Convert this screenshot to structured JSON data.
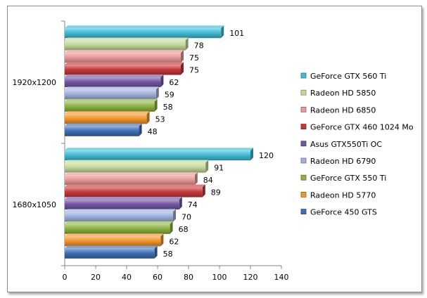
{
  "chart_data": {
    "type": "bar",
    "orientation": "horizontal",
    "title": "",
    "xlabel": "",
    "ylabel": "",
    "xlim": [
      0,
      140
    ],
    "ticks": [
      0,
      20,
      40,
      60,
      80,
      100,
      120,
      140
    ],
    "grid": false,
    "legend_position": "right",
    "categories": [
      "1920x1200",
      "1680x1050"
    ],
    "series": [
      {
        "name": "GeForce GTX 560 Ti",
        "color": "#3fbcd6",
        "values": [
          101,
          120
        ]
      },
      {
        "name": "Radeon HD 5850",
        "color": "#c3d89a",
        "values": [
          78,
          91
        ]
      },
      {
        "name": "Radeon HD 6850",
        "color": "#e89a98",
        "values": [
          75,
          84
        ]
      },
      {
        "name": "GeForce GTX 460 1024 Mo",
        "color": "#c8383a",
        "values": [
          75,
          89
        ]
      },
      {
        "name": "Asus GTX550Ti OC",
        "color": "#7457a3",
        "values": [
          62,
          74
        ]
      },
      {
        "name": "Radeon HD 6790",
        "color": "#9fb0dc",
        "values": [
          59,
          70
        ]
      },
      {
        "name": "GeForce GTX 550 Ti",
        "color": "#8cb33e",
        "values": [
          58,
          68
        ]
      },
      {
        "name": "Radeon HD 5770",
        "color": "#f2952b",
        "values": [
          53,
          62
        ]
      },
      {
        "name": "GeForce 450 GTS",
        "color": "#3d6fb5",
        "values": [
          48,
          58
        ]
      }
    ]
  }
}
